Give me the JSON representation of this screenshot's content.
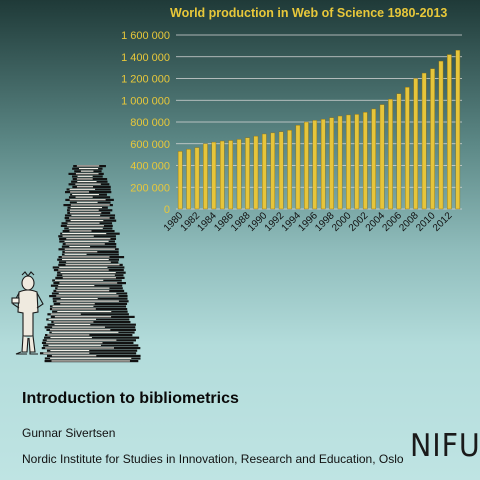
{
  "slide": {
    "title": "Introduction to bibliometrics",
    "author": "Gunnar Sivertsen",
    "institute": "Nordic Institute for Studies in Innovation, Research and Education, Oslo",
    "logo_text": "NIFU"
  },
  "colors": {
    "bar": "#e6c53b",
    "bar_edge": "#8a6d12",
    "axis_text": "#e8c83a",
    "gridline": "#d8d8d8"
  },
  "chart_data": {
    "type": "bar",
    "title": "World production in Web of Science 1980-2013",
    "xlabel": "",
    "ylabel": "",
    "ylim": [
      0,
      1600000
    ],
    "yticks": [
      0,
      200000,
      400000,
      600000,
      800000,
      1000000,
      1200000,
      1400000,
      1600000
    ],
    "ytick_labels": [
      "0",
      "200 000",
      "400 000",
      "600 000",
      "800 000",
      "1 000 000",
      "1 200 000",
      "1 400 000",
      "1 600 000"
    ],
    "grid": true,
    "legend": "none",
    "categories": [
      "1980",
      "1981",
      "1982",
      "1983",
      "1984",
      "1985",
      "1986",
      "1987",
      "1988",
      "1989",
      "1990",
      "1991",
      "1992",
      "1993",
      "1994",
      "1995",
      "1996",
      "1997",
      "1998",
      "1999",
      "2000",
      "2001",
      "2002",
      "2003",
      "2004",
      "2005",
      "2006",
      "2007",
      "2008",
      "2009",
      "2010",
      "2011",
      "2012",
      "2013"
    ],
    "shown_tick_labels": [
      "1980",
      "1982",
      "1984",
      "1986",
      "1988",
      "1990",
      "1992",
      "1994",
      "1996",
      "1998",
      "2000",
      "2002",
      "2004",
      "2006",
      "2008",
      "2010",
      "2012"
    ],
    "values": [
      530000,
      550000,
      565000,
      600000,
      615000,
      625000,
      630000,
      640000,
      655000,
      670000,
      690000,
      700000,
      710000,
      725000,
      770000,
      800000,
      815000,
      825000,
      840000,
      855000,
      865000,
      870000,
      890000,
      920000,
      960000,
      1010000,
      1060000,
      1120000,
      1200000,
      1250000,
      1290000,
      1360000,
      1420000,
      1460000
    ]
  }
}
